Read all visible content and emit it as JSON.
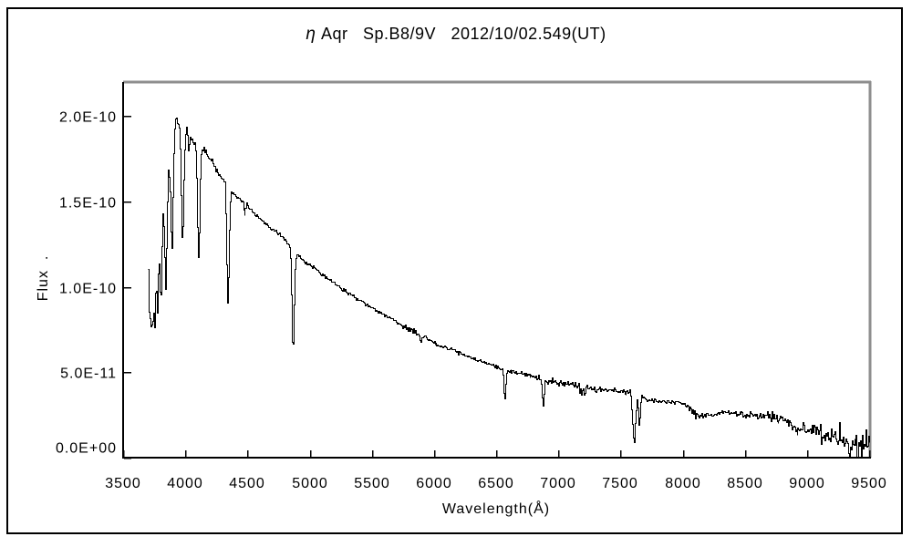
{
  "colors": {
    "line": "#000000",
    "frame_black": "#000000",
    "frame_gray": "#8e8e8e",
    "text": "#000000",
    "background": "#ffffff"
  },
  "chart_data": {
    "type": "line",
    "title": "η Aqr   Sp.B8/9V   2012/10/02.549(UT)",
    "title_parts": {
      "greek": "η",
      "rest": " Aqr   Sp.B8/9V   2012/10/02.549(UT)"
    },
    "xlabel": "Wavelength(Å)",
    "ylabel": "Flux  .",
    "xlim": [
      3500,
      9500
    ],
    "ylim": [
      0,
      2.2e-10
    ],
    "flux_unit": 1e-10,
    "grid": false,
    "legend": "none",
    "x_ticks": [
      3500,
      4000,
      4500,
      5000,
      5500,
      6000,
      6500,
      7000,
      7500,
      8000,
      8500,
      9000,
      9500
    ],
    "y_ticks": [
      {
        "label": "0.0E+00",
        "value": 0
      },
      {
        "label": "5.0E-11",
        "value": 5e-11
      },
      {
        "label": "1.0E-10",
        "value": 1e-10
      },
      {
        "label": "1.5E-10",
        "value": 1.5e-10
      },
      {
        "label": "2.0E-10",
        "value": 2e-10
      }
    ],
    "series": [
      {
        "name": "spectrum",
        "color": "#000000"
      }
    ],
    "wavelength_range": [
      3695,
      9500
    ],
    "continuum_points": [
      [
        3695,
        1.0
      ],
      [
        3722,
        1.03
      ],
      [
        3748,
        1.1
      ],
      [
        3775,
        1.23
      ],
      [
        3802,
        1.38
      ],
      [
        3830,
        1.53
      ],
      [
        3858,
        1.66
      ],
      [
        3886,
        1.8
      ],
      [
        3908,
        1.9
      ],
      [
        3922,
        2.0
      ],
      [
        3938,
        1.93
      ],
      [
        3955,
        1.96
      ],
      [
        3972,
        1.93
      ],
      [
        3988,
        1.87
      ],
      [
        4005,
        1.96
      ],
      [
        4022,
        1.92
      ],
      [
        4045,
        1.88
      ],
      [
        4075,
        1.84
      ],
      [
        4105,
        1.82
      ],
      [
        4140,
        1.81
      ],
      [
        4175,
        1.78
      ],
      [
        4215,
        1.73
      ],
      [
        4260,
        1.67
      ],
      [
        4310,
        1.61
      ],
      [
        4345,
        1.58
      ],
      [
        4390,
        1.54
      ],
      [
        4440,
        1.51
      ],
      [
        4495,
        1.47
      ],
      [
        4550,
        1.43
      ],
      [
        4610,
        1.39
      ],
      [
        4670,
        1.35
      ],
      [
        4730,
        1.32
      ],
      [
        4790,
        1.28
      ],
      [
        4845,
        1.24
      ],
      [
        4880,
        1.21
      ],
      [
        4920,
        1.17
      ],
      [
        4960,
        1.15
      ],
      [
        5000,
        1.13
      ],
      [
        5060,
        1.1
      ],
      [
        5120,
        1.06
      ],
      [
        5180,
        1.03
      ],
      [
        5240,
        1.0
      ],
      [
        5300,
        0.97
      ],
      [
        5360,
        0.94
      ],
      [
        5420,
        0.915
      ],
      [
        5480,
        0.885
      ],
      [
        5540,
        0.86
      ],
      [
        5600,
        0.835
      ],
      [
        5660,
        0.81
      ],
      [
        5720,
        0.785
      ],
      [
        5780,
        0.76
      ],
      [
        5840,
        0.735
      ],
      [
        5900,
        0.715
      ],
      [
        5960,
        0.69
      ],
      [
        6020,
        0.665
      ],
      [
        6080,
        0.65
      ],
      [
        6140,
        0.635
      ],
      [
        6200,
        0.615
      ],
      [
        6260,
        0.6
      ],
      [
        6320,
        0.58
      ],
      [
        6380,
        0.565
      ],
      [
        6440,
        0.55
      ],
      [
        6500,
        0.535
      ],
      [
        6560,
        0.515
      ],
      [
        6620,
        0.51
      ],
      [
        6680,
        0.5
      ],
      [
        6740,
        0.485
      ],
      [
        6800,
        0.475
      ],
      [
        6860,
        0.46
      ],
      [
        6920,
        0.45
      ],
      [
        6980,
        0.44
      ],
      [
        7040,
        0.435
      ],
      [
        7100,
        0.43
      ],
      [
        7160,
        0.425
      ],
      [
        7220,
        0.415
      ],
      [
        7280,
        0.41
      ],
      [
        7340,
        0.405
      ],
      [
        7400,
        0.4
      ],
      [
        7460,
        0.395
      ],
      [
        7520,
        0.39
      ],
      [
        7580,
        0.38
      ],
      [
        7640,
        0.365
      ],
      [
        7700,
        0.34
      ],
      [
        7760,
        0.335
      ],
      [
        7820,
        0.33
      ],
      [
        7880,
        0.33
      ],
      [
        7940,
        0.325
      ],
      [
        8000,
        0.32
      ],
      [
        8040,
        0.305
      ],
      [
        8075,
        0.27
      ],
      [
        8110,
        0.25
      ],
      [
        8160,
        0.245
      ],
      [
        8220,
        0.255
      ],
      [
        8290,
        0.265
      ],
      [
        8360,
        0.27
      ],
      [
        8430,
        0.265
      ],
      [
        8500,
        0.26
      ],
      [
        8570,
        0.255
      ],
      [
        8640,
        0.25
      ],
      [
        8710,
        0.24
      ],
      [
        8780,
        0.235
      ],
      [
        8830,
        0.215
      ],
      [
        8880,
        0.185
      ],
      [
        8930,
        0.17
      ],
      [
        8980,
        0.165
      ],
      [
        9030,
        0.165
      ],
      [
        9080,
        0.16
      ],
      [
        9130,
        0.15
      ],
      [
        9180,
        0.13
      ],
      [
        9230,
        0.11
      ],
      [
        9280,
        0.095
      ],
      [
        9330,
        0.08
      ],
      [
        9380,
        0.07
      ],
      [
        9430,
        0.055
      ],
      [
        9470,
        0.06
      ],
      [
        9500,
        0.08
      ]
    ],
    "absorption_lines": [
      {
        "id": "H14",
        "wavelength": 3712,
        "depth": 0.2,
        "width": 5
      },
      {
        "id": "H13",
        "wavelength": 3723,
        "depth": 0.24,
        "width": 5
      },
      {
        "id": "H12",
        "wavelength": 3735,
        "depth": 0.27,
        "width": 5
      },
      {
        "id": "H11",
        "wavelength": 3751,
        "depth": 0.29,
        "width": 6
      },
      {
        "id": "H10",
        "wavelength": 3772,
        "depth": 0.3,
        "width": 6
      },
      {
        "id": "H9",
        "wavelength": 3798,
        "depth": 0.31,
        "width": 7
      },
      {
        "id": "H8",
        "wavelength": 3835,
        "depth": 0.33,
        "width": 8
      },
      {
        "id": "HeI+H8",
        "wavelength": 3889,
        "depth": 0.33,
        "width": 8
      },
      {
        "id": "Heps+CaII",
        "wavelength": 3970,
        "depth": 0.34,
        "width": 9
      },
      {
        "id": "HeI-4026",
        "wavelength": 4026,
        "depth": 0.07,
        "width": 5
      },
      {
        "id": "Hdelta",
        "wavelength": 4101,
        "depth": 0.36,
        "width": 9
      },
      {
        "id": "Hgamma",
        "wavelength": 4340,
        "depth": 0.43,
        "width": 9
      },
      {
        "id": "HeI-4471",
        "wavelength": 4471,
        "depth": 0.05,
        "width": 5
      },
      {
        "id": "Hbeta",
        "wavelength": 4861,
        "depth": 0.49,
        "width": 9
      },
      {
        "id": "NaD",
        "wavelength": 5890,
        "depth": 0.05,
        "width": 6
      },
      {
        "id": "Halpha",
        "wavelength": 6563,
        "depth": 0.34,
        "width": 7
      },
      {
        "id": "O2-B-band",
        "wavelength": 6872,
        "depth": 0.33,
        "width": 7
      },
      {
        "id": "H2O-7200",
        "wavelength": 7190,
        "depth": 0.09,
        "width": 22
      },
      {
        "id": "O2-A-band",
        "wavelength": 7605,
        "depth": 0.78,
        "width": 11
      },
      {
        "id": "O2-A-wing",
        "wavelength": 7645,
        "depth": 0.5,
        "width": 7
      },
      {
        "id": "Paschen-1",
        "wavelength": 8500,
        "depth": 0.055,
        "width": 7
      },
      {
        "id": "Paschen-2",
        "wavelength": 8600,
        "depth": 0.05,
        "width": 7
      }
    ],
    "noise_profile": [
      [
        3695,
        0.065
      ],
      [
        3715,
        0.028
      ],
      [
        3800,
        0.02
      ],
      [
        3900,
        0.014
      ],
      [
        4000,
        0.011
      ],
      [
        4200,
        0.009
      ],
      [
        4400,
        0.008
      ],
      [
        4700,
        0.006
      ],
      [
        5000,
        0.0055
      ],
      [
        5500,
        0.005
      ],
      [
        5860,
        0.008
      ],
      [
        5950,
        0.005
      ],
      [
        6400,
        0.005
      ],
      [
        6550,
        0.006
      ],
      [
        6830,
        0.009
      ],
      [
        6900,
        0.013
      ],
      [
        6990,
        0.007
      ],
      [
        7120,
        0.009
      ],
      [
        7170,
        0.018
      ],
      [
        7280,
        0.014
      ],
      [
        7360,
        0.007
      ],
      [
        7550,
        0.006
      ],
      [
        7610,
        0.012
      ],
      [
        7680,
        0.007
      ],
      [
        7800,
        0.005
      ],
      [
        8000,
        0.006
      ],
      [
        8060,
        0.012
      ],
      [
        8150,
        0.011
      ],
      [
        8300,
        0.009
      ],
      [
        8450,
        0.01
      ],
      [
        8560,
        0.012
      ],
      [
        8680,
        0.014
      ],
      [
        8800,
        0.016
      ],
      [
        8900,
        0.02
      ],
      [
        9000,
        0.018
      ],
      [
        9100,
        0.024
      ],
      [
        9200,
        0.03
      ],
      [
        9300,
        0.036
      ],
      [
        9400,
        0.044
      ],
      [
        9500,
        0.05
      ]
    ]
  }
}
